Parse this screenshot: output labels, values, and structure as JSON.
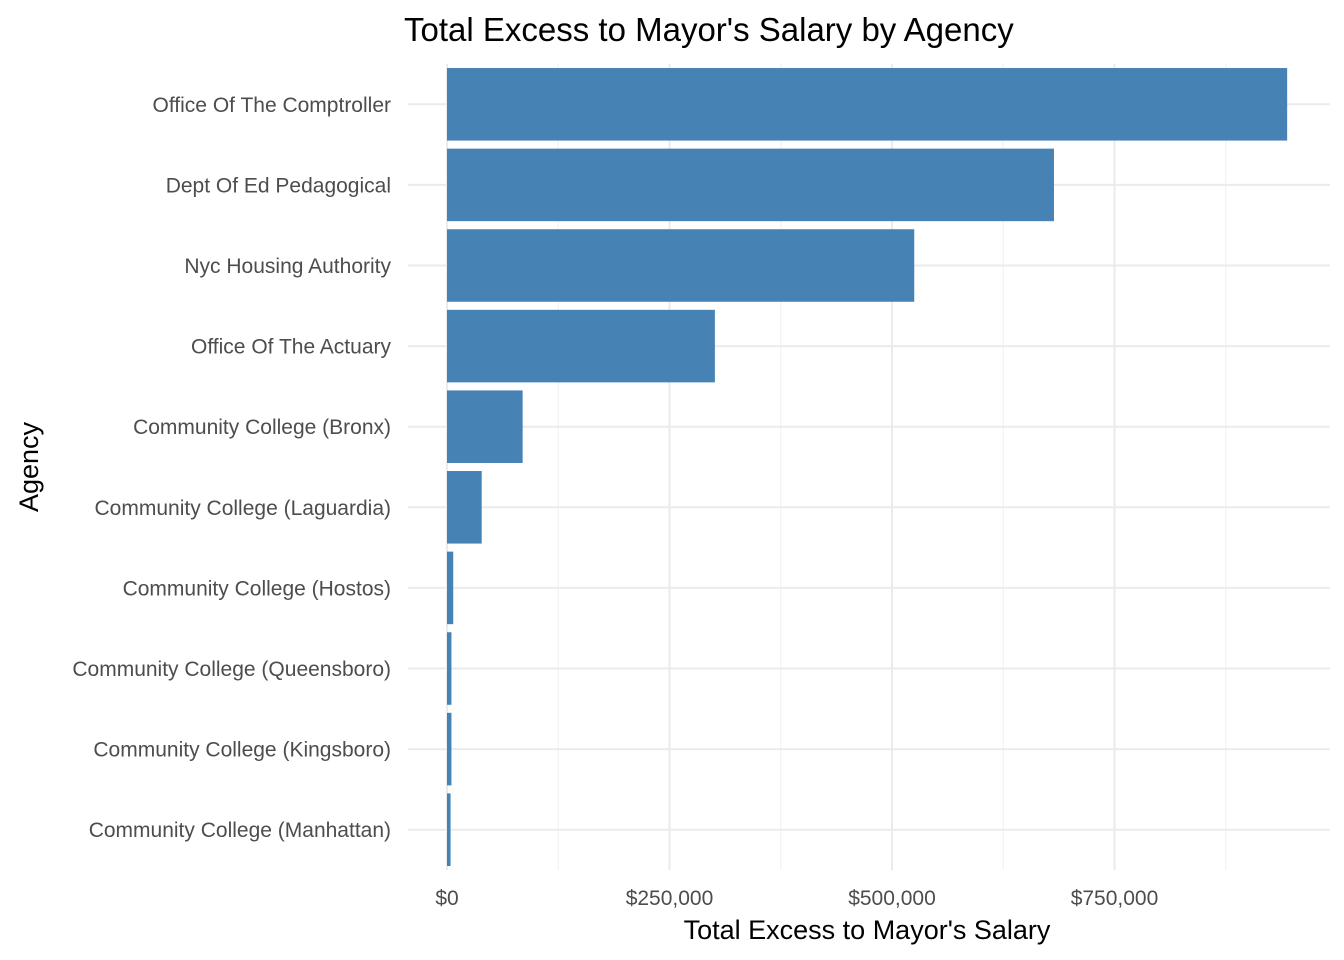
{
  "chart_data": {
    "type": "bar",
    "orientation": "horizontal",
    "title": "Total Excess to Mayor's Salary by Agency",
    "xlabel": "Total Excess to Mayor's Salary",
    "ylabel": "Agency",
    "categories": [
      "Office Of The Comptroller",
      "Dept Of Ed Pedagogical",
      "Nyc Housing Authority",
      "Office Of The Actuary",
      "Community College (Bronx)",
      "Community College (Laguardia)",
      "Community College (Hostos)",
      "Community College (Queensboro)",
      "Community College (Kingsboro)",
      "Community College (Manhattan)"
    ],
    "values": [
      944000,
      682000,
      525000,
      301000,
      85000,
      39000,
      7000,
      5000,
      5000,
      4000
    ],
    "xlim": [
      0,
      990000
    ],
    "x_ticks": [
      0,
      250000,
      500000,
      750000
    ],
    "x_tick_labels": [
      "$0",
      "$250,000",
      "$500,000",
      "$750,000"
    ],
    "grid": true,
    "colors": {
      "bar": "#4682b4",
      "grid_major": "#ebebeb",
      "grid_minor": "#f3f3f3"
    }
  }
}
